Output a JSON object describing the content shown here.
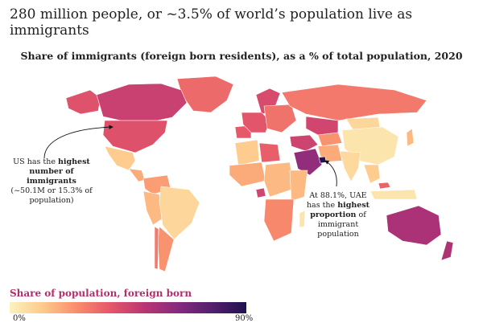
{
  "header": {
    "subtitle": "280 million people, or ~3.5% of world’s population live as immigrants"
  },
  "map": {
    "title": "Share of immigrants (foreign born residents), as a % of total population, 2020",
    "colors": {
      "low": "#fcf2bd",
      "high": "#20124f",
      "water": "#ffffff"
    },
    "regions": [
      {
        "name": "Canada",
        "share_pct": 21
      },
      {
        "name": "Alaska",
        "share_pct": 15
      },
      {
        "name": "United States",
        "share_pct": 15.3
      },
      {
        "name": "Greenland",
        "share_pct": 10
      },
      {
        "name": "Mexico",
        "share_pct": 1
      },
      {
        "name": "Central America",
        "share_pct": 3
      },
      {
        "name": "Colombia/Venezuela",
        "share_pct": 4
      },
      {
        "name": "Brazil",
        "share_pct": 0.5
      },
      {
        "name": "Peru/Bolivia",
        "share_pct": 2
      },
      {
        "name": "Argentina",
        "share_pct": 5
      },
      {
        "name": "Chile",
        "share_pct": 8
      },
      {
        "name": "Scandinavia",
        "share_pct": 17
      },
      {
        "name": "Western Europe",
        "share_pct": 14
      },
      {
        "name": "Iberia",
        "share_pct": 13
      },
      {
        "name": "Eastern Europe",
        "share_pct": 9
      },
      {
        "name": "Russia",
        "share_pct": 8
      },
      {
        "name": "Kazakhstan",
        "share_pct": 19
      },
      {
        "name": "Central Asia",
        "share_pct": 5
      },
      {
        "name": "North Africa",
        "share_pct": 1
      },
      {
        "name": "Libya",
        "share_pct": 12
      },
      {
        "name": "West Africa",
        "share_pct": 3
      },
      {
        "name": "Central Africa",
        "share_pct": 2
      },
      {
        "name": "Gabon",
        "share_pct": 19
      },
      {
        "name": "East Africa",
        "share_pct": 2
      },
      {
        "name": "Southern Africa",
        "share_pct": 6
      },
      {
        "name": "Saudi Arabia",
        "share_pct": 38
      },
      {
        "name": "UAE",
        "share_pct": 88.1
      },
      {
        "name": "Middle East",
        "share_pct": 20
      },
      {
        "name": "Iran/Afghanistan",
        "share_pct": 3
      },
      {
        "name": "India/South Asia",
        "share_pct": 0.4
      },
      {
        "name": "China",
        "share_pct": 0.1
      },
      {
        "name": "Mongolia",
        "share_pct": 0.5
      },
      {
        "name": "Japan",
        "share_pct": 2
      },
      {
        "name": "Southeast Asia",
        "share_pct": 1
      },
      {
        "name": "Malaysia",
        "share_pct": 11
      },
      {
        "name": "Indonesia",
        "share_pct": 0.1
      },
      {
        "name": "Australia",
        "share_pct": 30
      },
      {
        "name": "New Zealand",
        "share_pct": 29
      },
      {
        "name": "Madagascar",
        "share_pct": 0.1
      }
    ]
  },
  "annotations": {
    "us": {
      "text_before": "US has the ",
      "bold": "highest number of immigrants",
      "text_after": "(~50.1M or 15.3% of population)"
    },
    "uae": {
      "text_before": "At 88.1%, UAE has the ",
      "bold": "highest proportion",
      "text_after": " of immigrant population"
    }
  },
  "legend": {
    "title": "Share of population, foreign born",
    "min_label": "0%",
    "max_label": "90%"
  }
}
